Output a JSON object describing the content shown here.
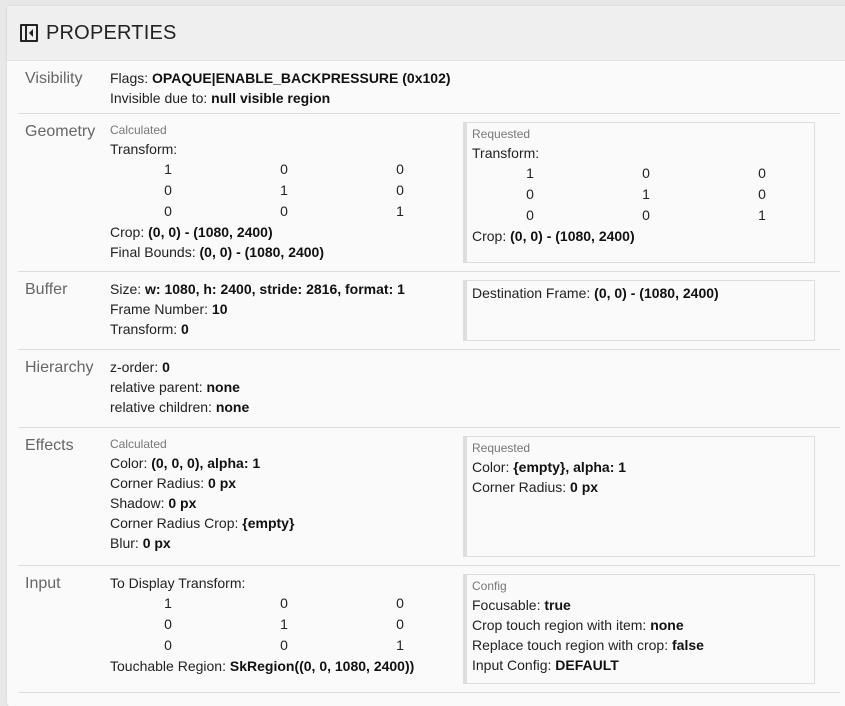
{
  "title": "PROPERTIES",
  "sections": [
    {
      "label": "Visibility",
      "h": 52,
      "left": {
        "lines": [
          {
            "k": "Flags: ",
            "v": "OPAQUE|ENABLE_BACKPRESSURE (0x102)"
          },
          {
            "k": "Invisible due to: ",
            "v": "null visible region"
          }
        ]
      }
    },
    {
      "label": "Geometry",
      "h": 157,
      "left": {
        "sub": "Calculated",
        "lines": [
          {
            "k": "Transform:",
            "v": ""
          }
        ],
        "matrix": [
          [
            "1",
            "0",
            "0"
          ],
          [
            "0",
            "1",
            "0"
          ],
          [
            "0",
            "0",
            "1"
          ]
        ],
        "after": [
          {
            "k": "Crop: ",
            "v": "(0, 0) - (1080, 2400)"
          },
          {
            "k": "Final Bounds: ",
            "v": "(0, 0) - (1080, 2400)"
          }
        ]
      },
      "right": {
        "sub": "Requested",
        "lines": [
          {
            "k": "Transform:",
            "v": ""
          }
        ],
        "matrix": [
          [
            "1",
            "0",
            "0"
          ],
          [
            "0",
            "1",
            "0"
          ],
          [
            "0",
            "0",
            "1"
          ]
        ],
        "after": [
          {
            "k": "Crop: ",
            "v": "(0, 0) - (1080, 2400)"
          }
        ]
      }
    },
    {
      "label": "Buffer",
      "h": 77,
      "left": {
        "lines": [
          {
            "k": "Size: ",
            "v": "w: 1080, h: 2400, stride: 2816, format: 1"
          },
          {
            "k": "Frame Number: ",
            "v": "10"
          },
          {
            "k": "Transform: ",
            "v": "0"
          }
        ]
      },
      "right": {
        "lines": [
          {
            "k": "Destination Frame: ",
            "v": "(0, 0) - (1080, 2400)"
          }
        ]
      }
    },
    {
      "label": "Hierarchy",
      "h": 77,
      "left": {
        "lines": [
          {
            "k": "z-order: ",
            "v": "0"
          },
          {
            "k": "relative parent: ",
            "v": "none"
          },
          {
            "k": "relative children: ",
            "v": "none"
          }
        ]
      }
    },
    {
      "label": "Effects",
      "h": 137,
      "left": {
        "sub": "Calculated",
        "lines": [
          {
            "k": "Color: ",
            "v": "(0, 0, 0), alpha: 1"
          },
          {
            "k": "Corner Radius: ",
            "v": "0 px"
          },
          {
            "k": "Shadow: ",
            "v": "0 px"
          },
          {
            "k": "Corner Radius Crop: ",
            "v": "{empty}"
          },
          {
            "k": "Blur: ",
            "v": "0 px"
          }
        ]
      },
      "right": {
        "sub": "Requested",
        "lines": [
          {
            "k": "Color: ",
            "v": "{empty}, alpha: 1"
          },
          {
            "k": "Corner Radius: ",
            "v": "0 px"
          }
        ]
      }
    },
    {
      "label": "Input",
      "h": 126,
      "left": {
        "lines": [
          {
            "k": "To Display Transform:",
            "v": ""
          }
        ],
        "matrix": [
          [
            "1",
            "0",
            "0"
          ],
          [
            "0",
            "1",
            "0"
          ],
          [
            "0",
            "0",
            "1"
          ]
        ],
        "after": [
          {
            "k": "Touchable Region: ",
            "v": "SkRegion((0, 0, 1080, 2400))"
          }
        ]
      },
      "right": {
        "sub": "Config",
        "lines": [
          {
            "k": "Focusable: ",
            "v": "true"
          },
          {
            "k": "Crop touch region with item: ",
            "v": "none"
          },
          {
            "k": "Replace touch region with crop: ",
            "v": "false"
          },
          {
            "k": "Input Config: ",
            "v": "DEFAULT"
          }
        ]
      }
    }
  ]
}
